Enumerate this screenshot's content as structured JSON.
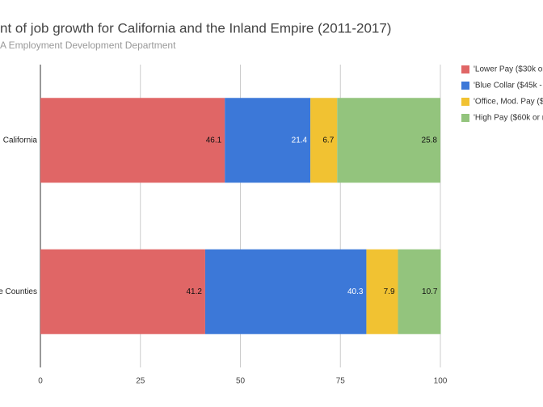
{
  "chart_data": {
    "type": "stacked-bar-horizontal",
    "title": "nt of job growth for California and the Inland Empire (2011-2017)",
    "subtitle": "A Employment Development Department",
    "categories": [
      "California",
      "e Counties"
    ],
    "series": [
      {
        "name": "'Lower Pay ($30k or",
        "color": "#e06666",
        "values": [
          46.1,
          41.2
        ]
      },
      {
        "name": "'Blue Collar ($45k - $",
        "color": "#3c78d8",
        "values": [
          21.4,
          40.3
        ]
      },
      {
        "name": "'Office, Mod. Pay ($4",
        "color": "#f1c232",
        "values": [
          6.7,
          7.9
        ]
      },
      {
        "name": "'High Pay ($60k or r",
        "color": "#93c47d",
        "values": [
          25.8,
          10.7
        ]
      }
    ],
    "xlim": [
      0,
      100
    ],
    "xticks": [
      0,
      25,
      50,
      75,
      100
    ],
    "grid": true
  }
}
